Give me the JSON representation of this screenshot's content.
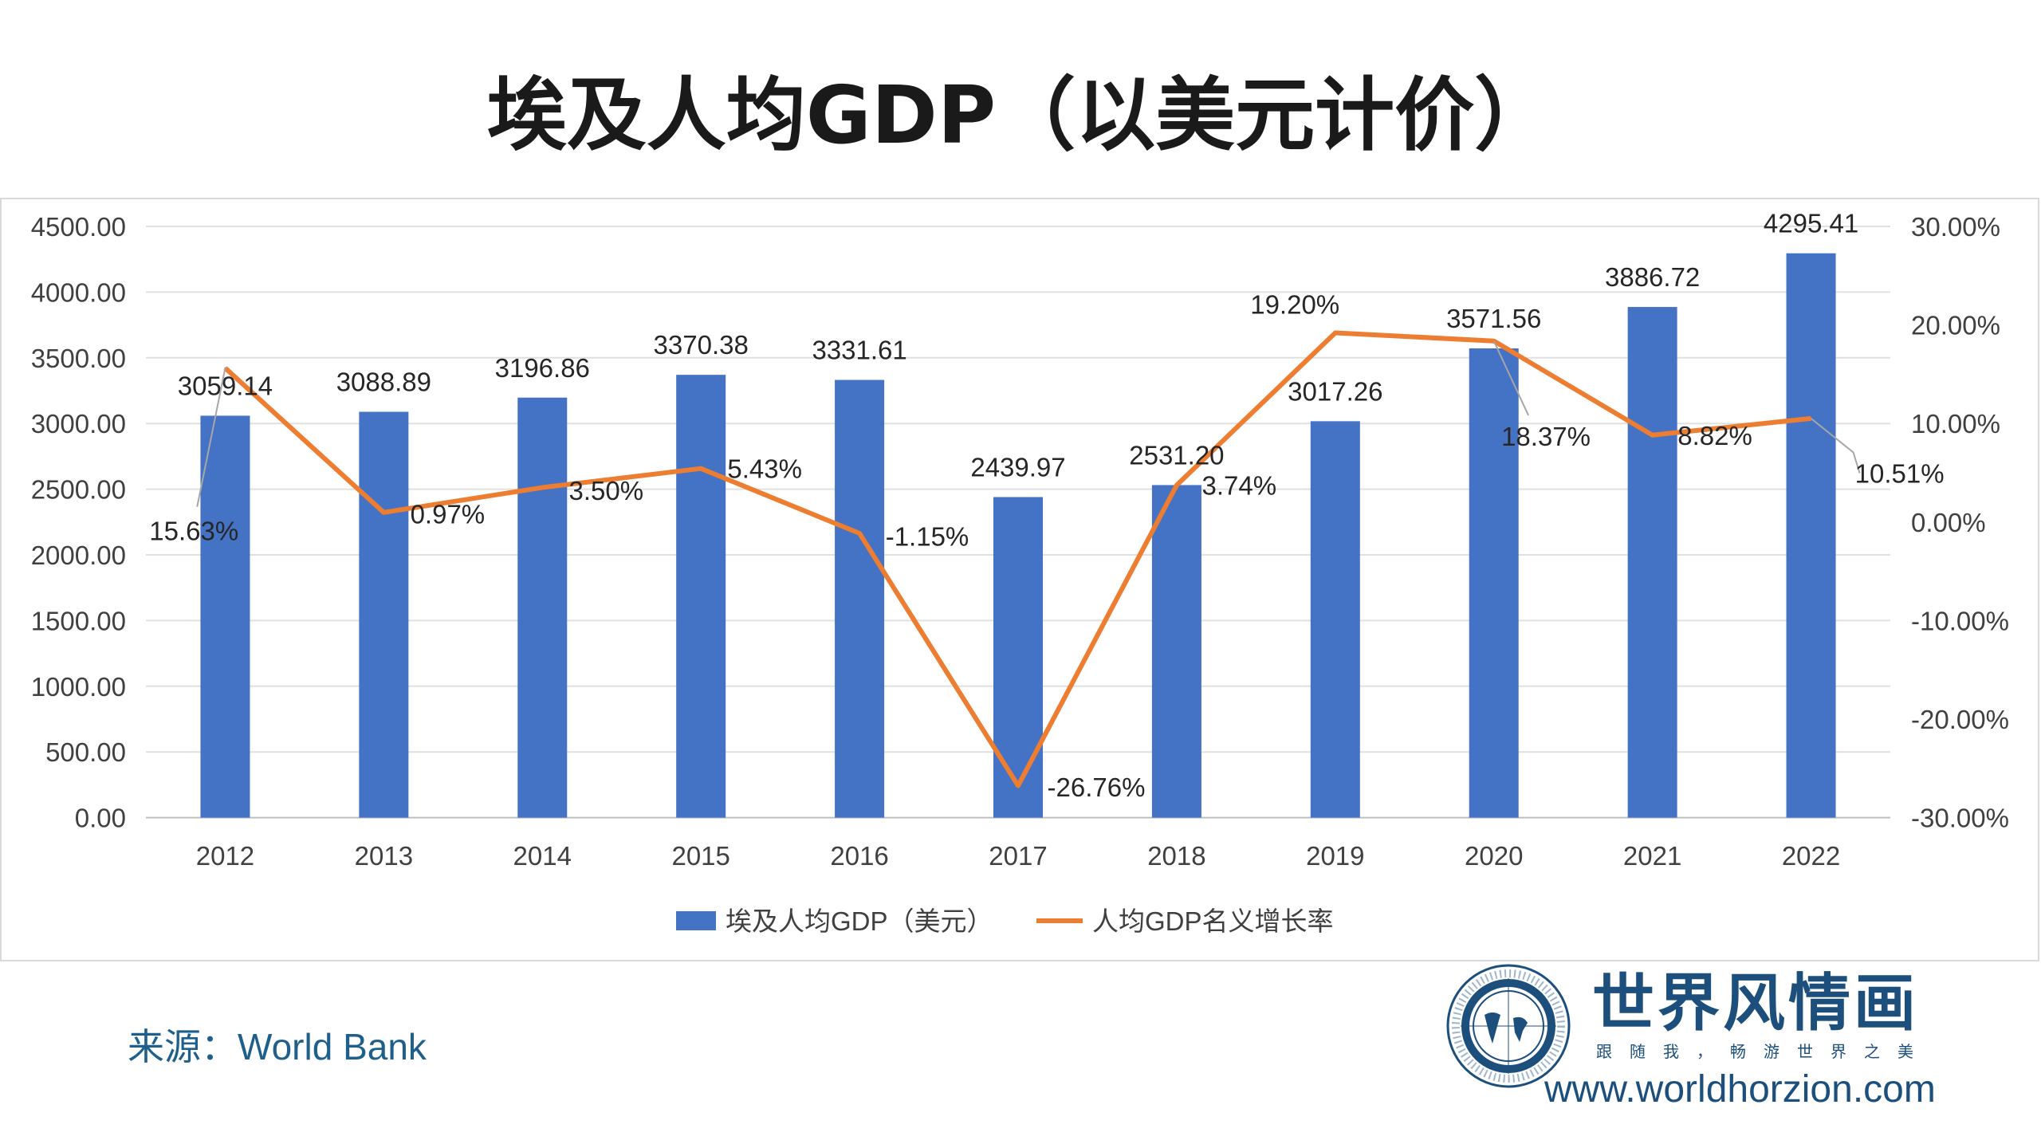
{
  "title": "埃及人均GDP（以美元计价）",
  "source": "来源：World Bank",
  "logo": {
    "name": "世界风情画",
    "slogan": "跟随我，畅游世界之美",
    "url": "www.worldhorzion.com"
  },
  "chart_data": {
    "type": "bar+line",
    "categories": [
      "2012",
      "2013",
      "2014",
      "2015",
      "2016",
      "2017",
      "2018",
      "2019",
      "2020",
      "2021",
      "2022"
    ],
    "series": [
      {
        "name": "埃及人均GDP（美元）",
        "type": "bar",
        "axis": "left",
        "color": "#4472c4",
        "values": [
          3059.14,
          3088.89,
          3196.86,
          3370.38,
          3331.61,
          2439.97,
          2531.2,
          3017.26,
          3571.56,
          3886.72,
          4295.41
        ],
        "labels": [
          "3059.14",
          "3088.89",
          "3196.86",
          "3370.38",
          "3331.61",
          "2439.97",
          "2531.20",
          "3017.26",
          "3571.56",
          "3886.72",
          "4295.41"
        ]
      },
      {
        "name": "人均GDP名义增长率",
        "type": "line",
        "axis": "right",
        "color": "#ed7d31",
        "values": [
          15.63,
          0.97,
          3.5,
          5.43,
          -1.15,
          -26.76,
          3.74,
          19.2,
          18.37,
          8.82,
          10.51
        ],
        "labels": [
          "15.63%",
          "0.97%",
          "3.50%",
          "5.43%",
          "-1.15%",
          "-26.76%",
          "3.74%",
          "19.20%",
          "18.37%",
          "8.82%",
          "10.51%"
        ]
      }
    ],
    "left_axis": {
      "range": [
        0,
        4500
      ],
      "ticks": [
        "0.00",
        "500.00",
        "1000.00",
        "1500.00",
        "2000.00",
        "2500.00",
        "3000.00",
        "3500.00",
        "4000.00",
        "4500.00"
      ]
    },
    "right_axis": {
      "range": [
        -30,
        30
      ],
      "ticks": [
        "-30.00%",
        "-20.00%",
        "-10.00%",
        "0.00%",
        "10.00%",
        "20.00%",
        "30.00%"
      ]
    },
    "grid": true,
    "legend": "bottom"
  }
}
